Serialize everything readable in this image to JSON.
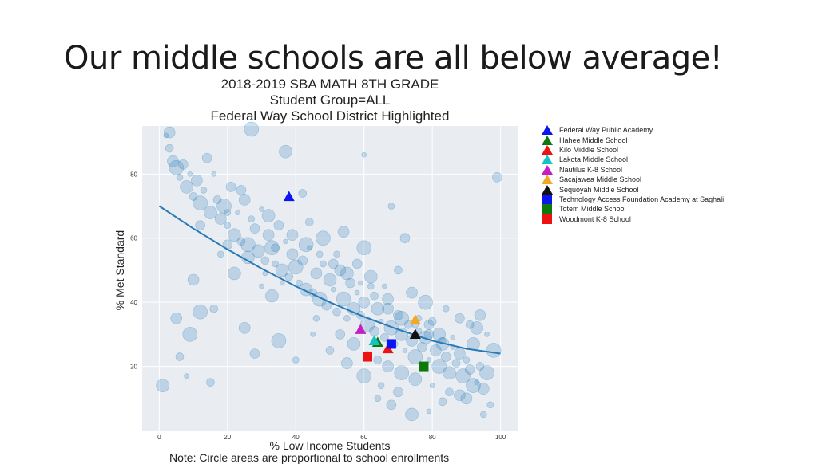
{
  "slide": {
    "title": "Our middle schools are all below average!"
  },
  "chart_data": {
    "type": "scatter",
    "title_lines": [
      "2018-2019 SBA MATH 8TH GRADE",
      "Student Group=ALL",
      "Federal Way School District Highlighted"
    ],
    "xlabel": "% Low Income Students",
    "ylabel": "% Met Standard",
    "xlim": [
      -5,
      105
    ],
    "ylim": [
      0,
      95
    ],
    "xticks": [
      0,
      20,
      40,
      60,
      80,
      100
    ],
    "yticks": [
      20,
      40,
      60,
      80
    ],
    "grid": true,
    "note": "Note: Circle areas are proportional to school enrollments",
    "background_series": {
      "name": "",
      "color": "#1f77b4",
      "points": [
        [
          2,
          92
        ],
        [
          3,
          88
        ],
        [
          4,
          84
        ],
        [
          5,
          82
        ],
        [
          6,
          79
        ],
        [
          7,
          83
        ],
        [
          8,
          76
        ],
        [
          9,
          80
        ],
        [
          10,
          73
        ],
        [
          11,
          78
        ],
        [
          12,
          71
        ],
        [
          13,
          75
        ],
        [
          14,
          85
        ],
        [
          15,
          68
        ],
        [
          16,
          80
        ],
        [
          17,
          72
        ],
        [
          18,
          66
        ],
        [
          19,
          70
        ],
        [
          20,
          64
        ],
        [
          21,
          76
        ],
        [
          22,
          61
        ],
        [
          23,
          68
        ],
        [
          24,
          59
        ],
        [
          25,
          72
        ],
        [
          26,
          58
        ],
        [
          27,
          66
        ],
        [
          28,
          63
        ],
        [
          29,
          56
        ],
        [
          30,
          69
        ],
        [
          31,
          53
        ],
        [
          32,
          61
        ],
        [
          33,
          57
        ],
        [
          34,
          52
        ],
        [
          35,
          64
        ],
        [
          36,
          50
        ],
        [
          37,
          59
        ],
        [
          38,
          48
        ],
        [
          39,
          55
        ],
        [
          40,
          51
        ],
        [
          41,
          46
        ],
        [
          42,
          53
        ],
        [
          43,
          44
        ],
        [
          44,
          57
        ],
        [
          45,
          43
        ],
        [
          46,
          49
        ],
        [
          47,
          41
        ],
        [
          48,
          52
        ],
        [
          49,
          39
        ],
        [
          50,
          47
        ],
        [
          51,
          44
        ],
        [
          52,
          37
        ],
        [
          53,
          50
        ],
        [
          54,
          41
        ],
        [
          55,
          35
        ],
        [
          56,
          46
        ],
        [
          57,
          38
        ],
        [
          58,
          43
        ],
        [
          59,
          36
        ],
        [
          60,
          40
        ],
        [
          61,
          33
        ],
        [
          62,
          45
        ],
        [
          63,
          31
        ],
        [
          64,
          38
        ],
        [
          65,
          34
        ],
        [
          66,
          29
        ],
        [
          67,
          41
        ],
        [
          68,
          32
        ],
        [
          69,
          27
        ],
        [
          70,
          36
        ],
        [
          71,
          30
        ],
        [
          72,
          25
        ],
        [
          73,
          33
        ],
        [
          74,
          28
        ],
        [
          75,
          23
        ],
        [
          76,
          31
        ],
        [
          77,
          26
        ],
        [
          78,
          29
        ],
        [
          79,
          22
        ],
        [
          80,
          34
        ],
        [
          81,
          25
        ],
        [
          82,
          20
        ],
        [
          83,
          28
        ],
        [
          84,
          23
        ],
        [
          85,
          18
        ],
        [
          86,
          26
        ],
        [
          87,
          21
        ],
        [
          88,
          24
        ],
        [
          89,
          17
        ],
        [
          90,
          22
        ],
        [
          91,
          19
        ],
        [
          92,
          27
        ],
        [
          93,
          15
        ],
        [
          94,
          20
        ],
        [
          95,
          13
        ],
        [
          96,
          18
        ],
        [
          97,
          8
        ],
        [
          99,
          79
        ],
        [
          1,
          14
        ],
        [
          8,
          17
        ],
        [
          15,
          15
        ],
        [
          3,
          93
        ],
        [
          27,
          94
        ],
        [
          18,
          55
        ],
        [
          12,
          64
        ],
        [
          22,
          49
        ],
        [
          30,
          45
        ],
        [
          16,
          38
        ],
        [
          25,
          32
        ],
        [
          35,
          28
        ],
        [
          40,
          22
        ],
        [
          28,
          24
        ],
        [
          33,
          42
        ],
        [
          45,
          30
        ],
        [
          50,
          25
        ],
        [
          55,
          21
        ],
        [
          60,
          17
        ],
        [
          65,
          14
        ],
        [
          70,
          12
        ],
        [
          75,
          16
        ],
        [
          80,
          14
        ],
        [
          85,
          12
        ],
        [
          90,
          10
        ],
        [
          48,
          60
        ],
        [
          52,
          55
        ],
        [
          58,
          52
        ],
        [
          62,
          48
        ],
        [
          66,
          45
        ],
        [
          70,
          50
        ],
        [
          74,
          43
        ],
        [
          78,
          40
        ],
        [
          84,
          38
        ],
        [
          88,
          35
        ],
        [
          93,
          32
        ],
        [
          96,
          30
        ],
        [
          44,
          65
        ],
        [
          54,
          62
        ],
        [
          60,
          57
        ],
        [
          68,
          70
        ],
        [
          72,
          60
        ],
        [
          37,
          87
        ],
        [
          60,
          86
        ],
        [
          42,
          74
        ],
        [
          10,
          47
        ],
        [
          12,
          37
        ],
        [
          20,
          68
        ],
        [
          24,
          75
        ],
        [
          32,
          67
        ],
        [
          36,
          46
        ],
        [
          6,
          23
        ],
        [
          5,
          35
        ],
        [
          9,
          30
        ],
        [
          46,
          35
        ],
        [
          53,
          30
        ],
        [
          57,
          27
        ],
        [
          61,
          24
        ],
        [
          64,
          22
        ],
        [
          67,
          20
        ],
        [
          71,
          18
        ],
        [
          76,
          35
        ],
        [
          79,
          33
        ],
        [
          82,
          30
        ],
        [
          86,
          29
        ],
        [
          91,
          33
        ],
        [
          94,
          36
        ],
        [
          98,
          25
        ],
        [
          64,
          10
        ],
        [
          68,
          8
        ],
        [
          74,
          5
        ],
        [
          79,
          6
        ],
        [
          83,
          9
        ],
        [
          88,
          11
        ],
        [
          92,
          14
        ],
        [
          95,
          5
        ],
        [
          20,
          58
        ],
        [
          26,
          54
        ],
        [
          31,
          49
        ],
        [
          34,
          57
        ],
        [
          39,
          61
        ],
        [
          43,
          58
        ],
        [
          47,
          55
        ],
        [
          51,
          52
        ],
        [
          55,
          49
        ],
        [
          59,
          46
        ],
        [
          63,
          42
        ],
        [
          67,
          38
        ],
        [
          71,
          35
        ],
        [
          75,
          33
        ],
        [
          79,
          30
        ],
        [
          83,
          27
        ]
      ]
    },
    "trend_line": {
      "color": "#2a7ab8",
      "points": [
        [
          0,
          70
        ],
        [
          10,
          63
        ],
        [
          20,
          56.5
        ],
        [
          30,
          50.5
        ],
        [
          40,
          45
        ],
        [
          50,
          40
        ],
        [
          60,
          35.5
        ],
        [
          70,
          31.5
        ],
        [
          80,
          28
        ],
        [
          90,
          25.5
        ],
        [
          100,
          24
        ]
      ]
    },
    "highlighted": [
      {
        "name": "Federal Way Public Academy",
        "shape": "triangle",
        "color": "#0a15f0",
        "x": 38,
        "y": 73
      },
      {
        "name": "Illahee Middle School",
        "shape": "triangle",
        "color": "#0b7a0b",
        "x": 64,
        "y": 27.5
      },
      {
        "name": "Kilo Middle School",
        "shape": "triangle",
        "color": "#ee1111",
        "x": 67,
        "y": 25.5
      },
      {
        "name": "Lakota Middle School",
        "shape": "triangle",
        "color": "#14c4c4",
        "x": 63,
        "y": 28
      },
      {
        "name": "Nautilus K-8 School",
        "shape": "triangle",
        "color": "#c41ec4",
        "x": 59,
        "y": 31.5
      },
      {
        "name": "Sacajawea Middle School",
        "shape": "triangle",
        "color": "#f5a623",
        "x": 75,
        "y": 34.5
      },
      {
        "name": "Sequoyah Middle School",
        "shape": "triangle",
        "color": "#111111",
        "x": 75,
        "y": 30
      },
      {
        "name": "Technology Access Foundation Academy at Saghali",
        "shape": "square",
        "color": "#0a15f0",
        "x": 68,
        "y": 27
      },
      {
        "name": "Totem Middle School",
        "shape": "square",
        "color": "#0b7a0b",
        "x": 77.5,
        "y": 20
      },
      {
        "name": "Woodmont K-8 School",
        "shape": "square",
        "color": "#ee1111",
        "x": 61,
        "y": 23
      }
    ]
  }
}
